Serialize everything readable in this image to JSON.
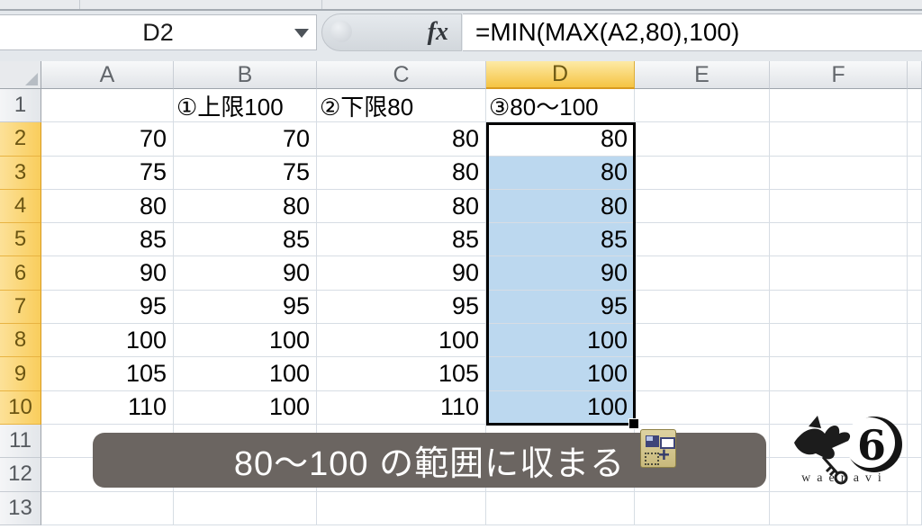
{
  "formula_bar": {
    "name_box": "D2",
    "fx_label": "fx",
    "formula": "=MIN(MAX(A2,80),100)"
  },
  "sheet": {
    "col_headers": [
      "A",
      "B",
      "C",
      "D",
      "E",
      "F"
    ],
    "row_headers": [
      "1",
      "2",
      "3",
      "4",
      "5",
      "6",
      "7",
      "8",
      "9",
      "10",
      "11",
      "12",
      "13"
    ],
    "header_labels": {
      "B": "①上限100",
      "C": "②下限80",
      "D": "③80〜100"
    },
    "data_rows": [
      {
        "A": "70",
        "B": "70",
        "C": "80",
        "D": "80"
      },
      {
        "A": "75",
        "B": "75",
        "C": "80",
        "D": "80"
      },
      {
        "A": "80",
        "B": "80",
        "C": "80",
        "D": "80"
      },
      {
        "A": "85",
        "B": "85",
        "C": "85",
        "D": "85"
      },
      {
        "A": "90",
        "B": "90",
        "C": "90",
        "D": "90"
      },
      {
        "A": "95",
        "B": "95",
        "C": "95",
        "D": "95"
      },
      {
        "A": "100",
        "B": "100",
        "C": "100",
        "D": "100"
      },
      {
        "A": "105",
        "B": "100",
        "C": "105",
        "D": "100"
      },
      {
        "A": "110",
        "B": "100",
        "C": "110",
        "D": "100"
      }
    ],
    "selection": {
      "range": "D2:D10",
      "active_cell": "D2",
      "column": "D",
      "rows": [
        2,
        3,
        4,
        5,
        6,
        7,
        8,
        9,
        10
      ]
    }
  },
  "caption": {
    "text": "80〜100 の範囲に収まる"
  },
  "logo": {
    "text": "waenavi"
  },
  "colors": {
    "selection_fill": "#bcd8ef",
    "selected_header": "#f5c443",
    "caption_bg": "#6b6561",
    "smart_tag_bg": "#d3c58c",
    "gridline": "#d7dde4"
  }
}
